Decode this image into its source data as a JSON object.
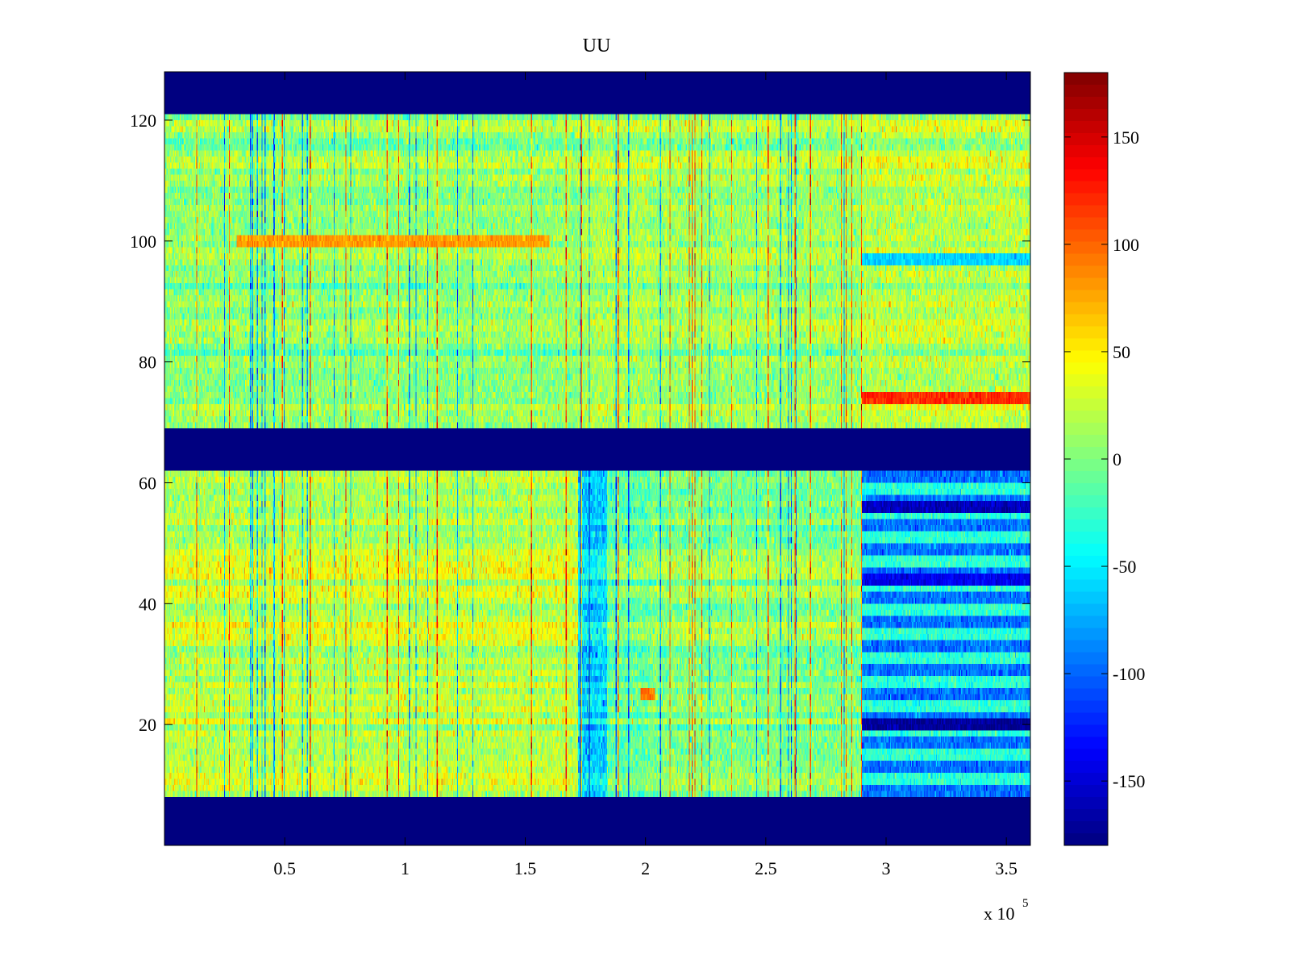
{
  "chart_data": {
    "type": "heatmap",
    "title": "UU",
    "xlabel": "",
    "ylabel": "",
    "x_exponent_label": "x 10",
    "x_exponent_power": "5",
    "xlim": [
      0,
      360000
    ],
    "ylim": [
      0,
      128
    ],
    "xticks": [
      0.5,
      1,
      1.5,
      2,
      2.5,
      3,
      3.5
    ],
    "xtick_labels": [
      "0.5",
      "1",
      "1.5",
      "2",
      "2.5",
      "3",
      "3.5"
    ],
    "yticks": [
      20,
      40,
      60,
      80,
      100,
      120
    ],
    "ytick_labels": [
      "20",
      "40",
      "60",
      "80",
      "100",
      "120"
    ],
    "colorbar": {
      "colormap": "jet",
      "clim": [
        -180,
        180
      ],
      "ticks": [
        150,
        100,
        50,
        0,
        -50,
        -100,
        -150
      ],
      "tick_labels": [
        "150",
        "100",
        "50",
        "0",
        "-50",
        "-100",
        "-150"
      ]
    },
    "regions": [
      {
        "name": "no-data",
        "y_range": [
          0,
          8
        ],
        "value": -180
      },
      {
        "name": "no-data",
        "y_range": [
          62,
          69
        ],
        "value": -180
      },
      {
        "name": "no-data",
        "y_range": [
          121,
          128
        ],
        "value": -180
      }
    ],
    "segments_x": [
      0,
      172000,
      202000,
      290000,
      360000
    ],
    "band_means": {
      "lower_rows_8_62": [
        25,
        -5,
        5,
        -100
      ],
      "upper_rows_69_121": [
        5,
        15,
        10,
        20
      ]
    },
    "notable_features": [
      {
        "row": 74,
        "x_range": [
          290000,
          360000
        ],
        "value": 120
      },
      {
        "row": 20,
        "x_range": [
          290000,
          360000
        ],
        "value": -170
      },
      {
        "row": 56,
        "x_range": [
          290000,
          360000
        ],
        "value": -160
      },
      {
        "row": 44,
        "x_range": [
          290000,
          360000
        ],
        "value": -140
      },
      {
        "row": 97,
        "x_range": [
          290000,
          360000
        ],
        "value": -60
      },
      {
        "row": 25,
        "x_range": [
          198000,
          204000
        ],
        "value": 90
      },
      {
        "row": 100,
        "x_range": [
          30000,
          160000
        ],
        "value": 80
      }
    ],
    "grid": false
  }
}
